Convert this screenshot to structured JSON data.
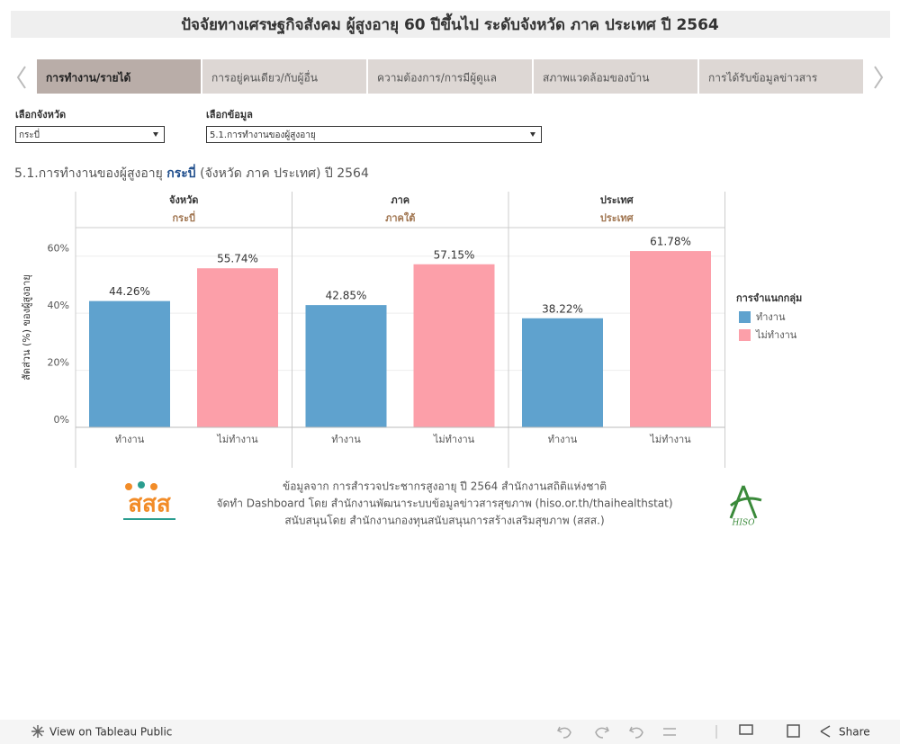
{
  "header": {
    "title": "ปัจจัยทางเศรษฐกิจสังคม ผู้สูงอายุ 60 ปีขึ้นไป ระดับจังหวัด ภาค ประเทศ ปี 2564"
  },
  "tabs": [
    "การทำงาน/รายได้",
    "การอยู่คนเดียว/กับผู้อื่น",
    "ความต้องการ/การมีผู้ดูแล",
    "สภาพแวดล้อมของบ้าน",
    "การได้รับข้อมูลข่าวสาร"
  ],
  "filters": [
    {
      "label": "เลือกจังหวัด",
      "value": "กระบี่"
    },
    {
      "label": "เลือกข้อมูล",
      "value": "5.1.การทำงานของผู้สูงอายุ"
    }
  ],
  "chart_data": {
    "type": "bar",
    "title": [
      "5.1.การทำงานของผู้สูงอายุ",
      "กระบี่",
      "(จังหวัด ภาค ประเทศ) ปี 2564"
    ],
    "y_label": "สัดส่วน (%) ของผู้สูงอายุ",
    "panels": [
      {
        "title": "จังหวัด",
        "subtitle": "กระบี่"
      },
      {
        "title": "ภาค",
        "subtitle": "ภาคใต้"
      },
      {
        "title": "ประเทศ",
        "subtitle": "ประเทศ"
      }
    ],
    "legend_title": "การจำแนกกลุ่ม",
    "series": [
      {
        "name": "ทำงาน",
        "color": "#5fa2ce",
        "values": [
          44.26,
          42.85,
          38.22
        ],
        "value_labels": [
          "44.26%",
          "42.85%",
          "38.22%"
        ]
      },
      {
        "name": "ไม่ทำงาน",
        "color": "#fc9fa9",
        "values": [
          55.74,
          57.15,
          61.78
        ],
        "value_labels": [
          "55.74%",
          "57.15%",
          "61.78%"
        ]
      }
    ],
    "ylim": [
      0,
      70
    ],
    "yticks": [
      {
        "value": 0,
        "label": "0%"
      },
      {
        "value": 20,
        "label": "20%"
      },
      {
        "value": 40,
        "label": "40%"
      },
      {
        "value": 60,
        "label": "60%"
      }
    ],
    "grid": true
  },
  "footer": {
    "lines": [
      "ข้อมูลจาก การสำรวจประชากรสูงอายุ ปี 2564 สำนักงานสถิติแห่งชาติ",
      "จัดทำ Dashboard โดย สำนักงานพัฒนาระบบข้อมูลข่าวสารสุขภาพ (hiso.or.th/thaihealthstat)",
      "สนับสนุนโดย สำนักงานกองทุนสนับสนุนการสร้างเสริมสุขภาพ (สสส.)"
    ],
    "logo_left": "สสส",
    "logo_right": "HISO"
  },
  "toolbar": {
    "view": "View on Tableau Public",
    "share": "Share"
  }
}
